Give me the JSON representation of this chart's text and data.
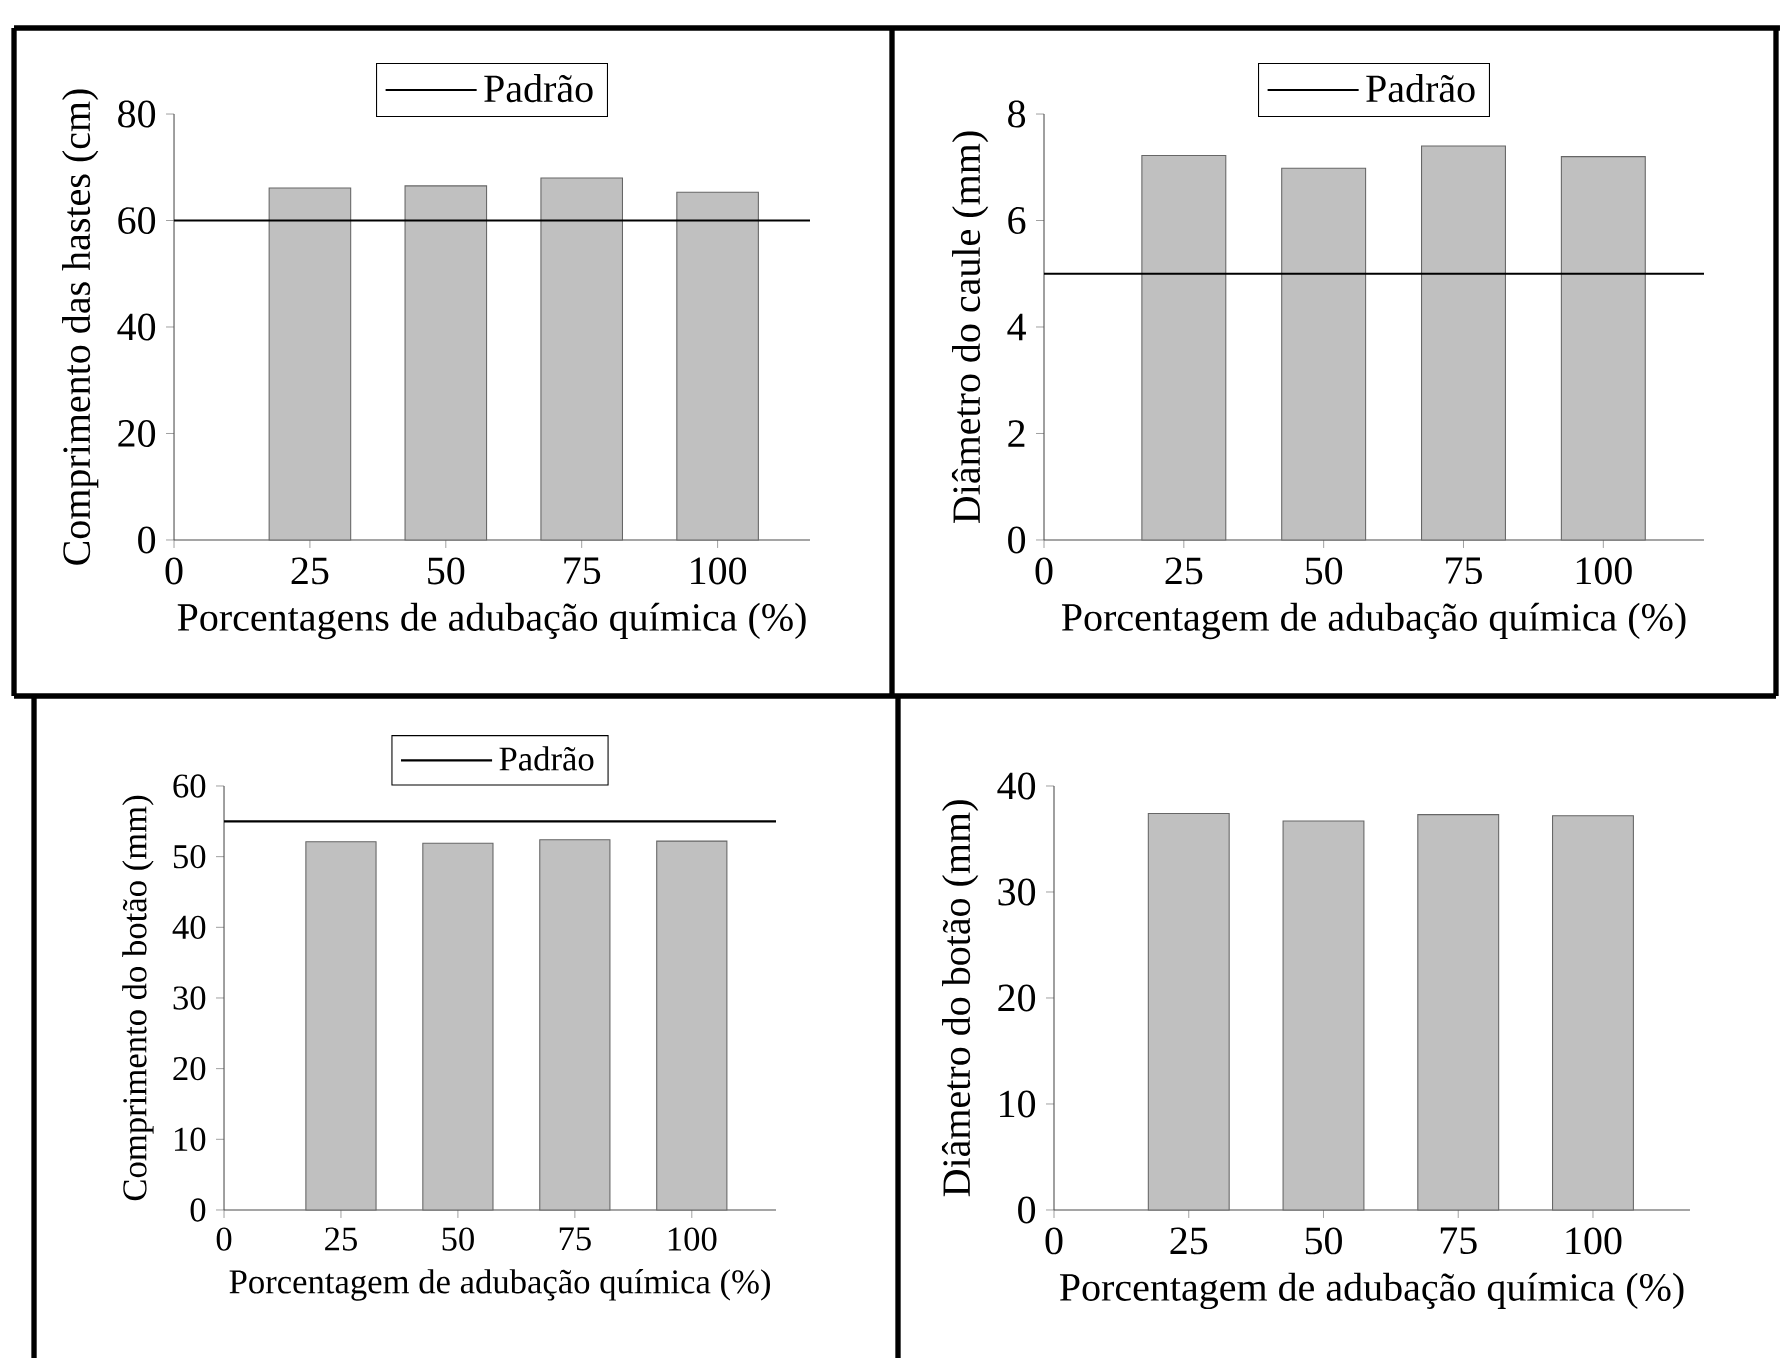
{
  "chart_data": [
    {
      "type": "bar",
      "x": [
        25,
        50,
        75,
        100
      ],
      "values": [
        66.1,
        66.5,
        68.0,
        65.3
      ],
      "color": "#c0c0c0",
      "xlabel": "Porcentagens de adubação química (%)",
      "ylabel": "Comprimento das hastes (cm)",
      "xlim": [
        0,
        117
      ],
      "xticks": [
        0,
        25,
        50,
        75,
        100
      ],
      "ylim": [
        0,
        80
      ],
      "yticks": [
        0,
        20,
        40,
        60,
        80
      ],
      "ref_lines": [
        {
          "axis": "y",
          "value": 60,
          "label": "Padrão",
          "color": "#000000"
        }
      ],
      "legend": "top"
    },
    {
      "type": "bar",
      "x": [
        25,
        50,
        75,
        100
      ],
      "values": [
        7.22,
        6.98,
        7.4,
        7.2
      ],
      "color": "#c0c0c0",
      "xlabel": "Porcentagem de adubação química (%)",
      "ylabel": "Diâmetro do caule (mm)",
      "xlim": [
        0,
        118
      ],
      "xticks": [
        0,
        25,
        50,
        75,
        100
      ],
      "ylim": [
        0,
        8
      ],
      "yticks": [
        0,
        2,
        4,
        6,
        8
      ],
      "ref_lines": [
        {
          "axis": "y",
          "value": 5,
          "label": "Padrão",
          "color": "#000000"
        }
      ],
      "legend": "top"
    },
    {
      "type": "bar",
      "x": [
        25,
        50,
        75,
        100
      ],
      "values": [
        52.1,
        51.9,
        52.4,
        52.2
      ],
      "color": "#c0c0c0",
      "xlabel": "Porcentagem de adubação química (%)",
      "ylabel": "Comprimento do botão (mm)",
      "xlim": [
        0,
        118
      ],
      "xticks": [
        0,
        25,
        50,
        75,
        100
      ],
      "ylim": [
        0,
        60
      ],
      "yticks": [
        0,
        10,
        20,
        30,
        40,
        50,
        60
      ],
      "ref_lines": [
        {
          "axis": "y",
          "value": 55,
          "label": "Padrão",
          "color": "#000000"
        }
      ],
      "legend": "top"
    },
    {
      "type": "bar",
      "x": [
        25,
        50,
        75,
        100
      ],
      "values": [
        37.4,
        36.7,
        37.3,
        37.2
      ],
      "color": "#c0c0c0",
      "xlabel": "Porcentagem de adubação química (%)",
      "ylabel": "Diâmetro do botão (mm)",
      "xlim": [
        0,
        118
      ],
      "xticks": [
        0,
        25,
        50,
        75,
        100
      ],
      "ylim": [
        0,
        40
      ],
      "yticks": [
        0,
        10,
        20,
        30,
        40
      ]
    }
  ]
}
